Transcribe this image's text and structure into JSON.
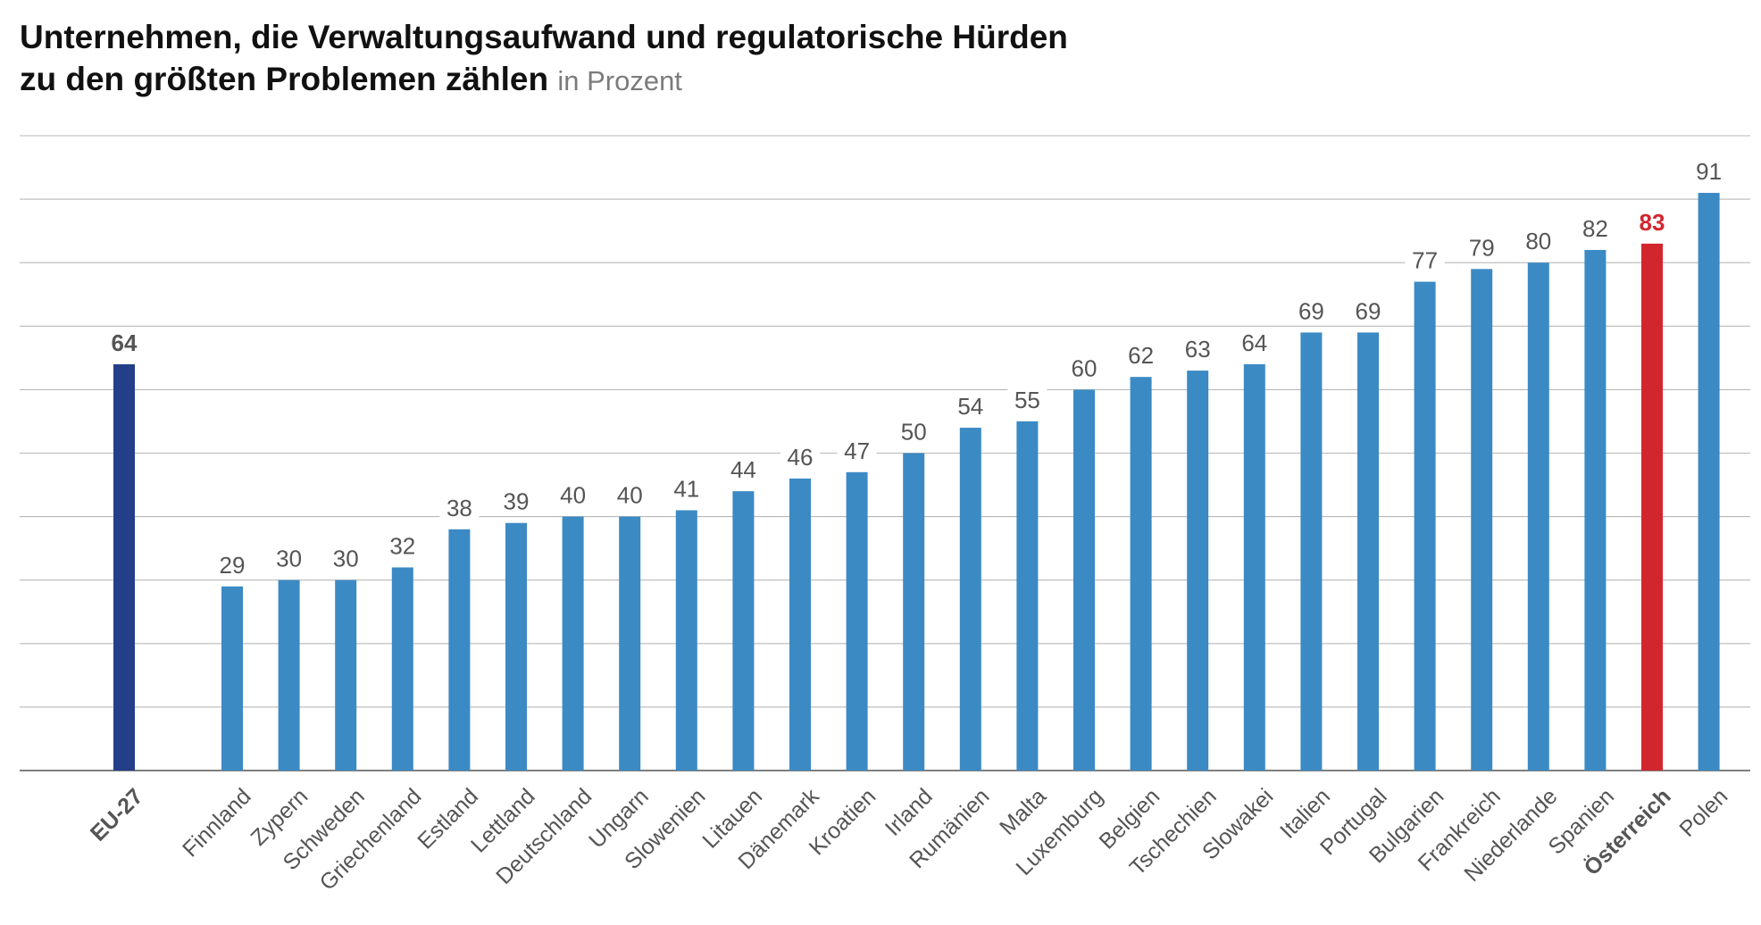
{
  "chart_data": {
    "type": "bar",
    "title_line1": "Unternehmen, die Verwaltungsaufwand und regulatorische Hürden",
    "title_line2": "zu den größten Problemen zählen",
    "unit": "in Prozent",
    "xlabel": "",
    "ylabel": "",
    "ylim": [
      0,
      100
    ],
    "grid": true,
    "legend": "none",
    "categories": [
      "EU-27",
      "Finnland",
      "Zypern",
      "Schweden",
      "Griechenland",
      "Estland",
      "Lettland",
      "Deutschland",
      "Ungarn",
      "Slowenien",
      "Litauen",
      "Dänemark",
      "Kroatien",
      "Irland",
      "Rumänien",
      "Malta",
      "Luxemburg",
      "Belgien",
      "Tschechien",
      "Slowakei",
      "Italien",
      "Portugal",
      "Bulgarien",
      "Frankreich",
      "Niederlande",
      "Spanien",
      "Österreich",
      "Polen"
    ],
    "values": [
      64,
      29,
      30,
      30,
      32,
      38,
      39,
      40,
      40,
      41,
      44,
      46,
      47,
      50,
      54,
      55,
      60,
      62,
      63,
      64,
      69,
      69,
      77,
      79,
      80,
      82,
      83,
      91
    ],
    "highlight": {
      "EU-27": "eu",
      "Österreich": "austria"
    },
    "colors": {
      "default": "#3b8ac4",
      "eu": "#233f8a",
      "austria": "#d2262e",
      "grid": "#b8b8b8",
      "axis": "#555555",
      "label": "#555555"
    }
  }
}
